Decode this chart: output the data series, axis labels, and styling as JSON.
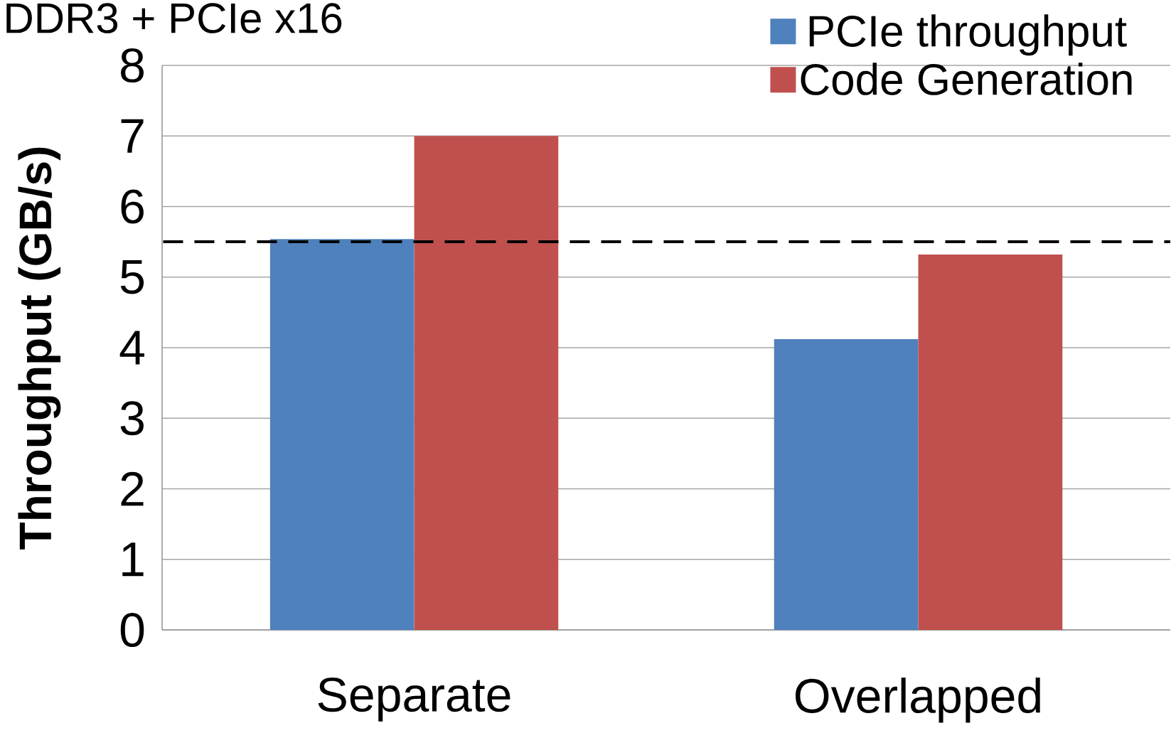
{
  "chart_data": {
    "type": "bar",
    "title": "DDR3 + PCIe x16",
    "ylabel": "Throughput (GB/s)",
    "categories": [
      "Separate",
      "Overlapped"
    ],
    "series": [
      {
        "name": "PCIe throughput",
        "color": "#4f81bd",
        "values": [
          5.54,
          4.12
        ]
      },
      {
        "name": "Code Generation",
        "color": "#c0504d",
        "values": [
          7.0,
          5.32
        ]
      }
    ],
    "ylim": [
      0,
      8
    ],
    "yticks": [
      0,
      1,
      2,
      3,
      4,
      5,
      6,
      7,
      8
    ],
    "grid": "y",
    "legend": "top right",
    "ref_lines": [
      {
        "axis": "y",
        "value": 5.5,
        "color": "#000000",
        "line_style": "dashed"
      }
    ]
  }
}
